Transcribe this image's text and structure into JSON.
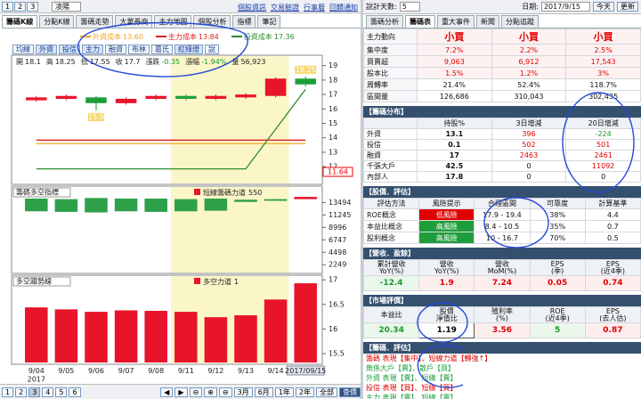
{
  "left": {
    "nav": [
      "1",
      "2",
      "3"
    ],
    "stock_name": "凌陽",
    "links": [
      "個股資訊",
      "交易驗證",
      "行事曆",
      "回饋通知"
    ],
    "tabs": [
      "籌碼K線",
      "分點K線",
      "籌碼走勢",
      "大單券商",
      "主力地圖",
      "個股分析",
      "指標",
      "筆記"
    ],
    "buttons": [
      "均線",
      "外資",
      "投信",
      "主力",
      "融資",
      "布林",
      "葛氏",
      "紅綠燈",
      "說"
    ],
    "info_labels": [
      "開",
      "高",
      "低",
      "收",
      "漲跌",
      "漲幅",
      "量"
    ],
    "change": -0.35,
    "change_pct": {
      "value": -1.94,
      "label": "-1.94%"
    },
    "volume": {
      "value": 56923,
      "label": "56,923"
    },
    "pages": [
      "1",
      "2",
      "3",
      "4",
      "5",
      "6"
    ],
    "ranges": [
      "3月",
      "6月",
      "1年",
      "2年",
      "全部",
      "查價"
    ]
  },
  "chart_data": [
    {
      "type": "candlestick",
      "categories": [
        "9/04",
        "9/05",
        "9/06",
        "9/07",
        "9/08",
        "9/11",
        "9/12",
        "9/13",
        "9/14",
        "2017/09/15"
      ],
      "year_label": "2017",
      "open": [
        16.6,
        16.7,
        16.8,
        16.4,
        16.7,
        16.9,
        16.7,
        16.8,
        16.9,
        18.1
      ],
      "high": [
        16.9,
        17.0,
        16.9,
        16.8,
        17.0,
        17.0,
        17.0,
        17.1,
        18.2,
        18.25
      ],
      "low": [
        16.5,
        16.6,
        15.9,
        16.3,
        16.6,
        16.6,
        16.6,
        16.7,
        16.8,
        17.55
      ],
      "close": [
        16.8,
        16.9,
        16.4,
        16.7,
        16.9,
        16.7,
        16.9,
        17.0,
        18.1,
        17.7
      ],
      "up_color": "#e8142a",
      "down_color": "#1e9e3a",
      "series": [
        {
          "name": "外資成本",
          "label": "13.60",
          "color": "#f5a623",
          "values": [
            13.6,
            13.6,
            13.6,
            13.6,
            13.6,
            13.6,
            13.6,
            13.6,
            13.6,
            13.6
          ]
        },
        {
          "name": "主力成本",
          "label": "13.84",
          "color": "#e02020",
          "values": [
            13.84,
            13.84,
            13.84,
            13.84,
            13.84,
            13.84,
            13.84,
            13.84,
            13.84,
            13.84
          ]
        },
        {
          "name": "投資成本",
          "label": "17.36",
          "color": "#2e8b2e",
          "values": [
            11.85,
            11.85,
            11.85,
            11.85,
            11.85,
            11.85,
            11.85,
            11.85,
            14.6,
            17.36
          ]
        }
      ],
      "ylim": [
        10.9,
        19.35
      ],
      "yticks": [
        19,
        18,
        17,
        16,
        15,
        14,
        13,
        12
      ],
      "marker": 11.64
    },
    {
      "type": "range-bar",
      "title": "籌碼多空指標",
      "indicator": "短線籌碼力道",
      "indicator_value": 550,
      "color": "#e8142a",
      "ylim": [
        1000,
        15000
      ],
      "yticks": [
        13494,
        11245,
        8996,
        6747,
        4498,
        2249
      ],
      "values": [
        [
          11900,
          14200
        ],
        [
          11800,
          14100
        ],
        [
          11700,
          14300
        ],
        [
          11900,
          14200
        ],
        [
          11800,
          14200
        ],
        [
          11900,
          14100
        ],
        [
          12000,
          14200
        ],
        [
          13600,
          14000
        ],
        [
          13800,
          14100
        ],
        [
          14100,
          14500
        ]
      ],
      "colors": [
        "#2ea04a",
        "#2ea04a",
        "#2ea04a",
        "#2ea04a",
        "#2ea04a",
        "#2ea04a",
        "#2ea04a",
        "#2ea04a",
        "#2ea04a",
        "#e8142a"
      ]
    },
    {
      "type": "bar",
      "title": "多空趨勢線",
      "indicator": "多空力道",
      "indicator_value": 1,
      "color": "#e8142a",
      "ylim": [
        15.32,
        17.04
      ],
      "yticks": [
        17,
        16.5,
        16,
        15.5
      ],
      "values": [
        16.44,
        16.4,
        16.35,
        16.38,
        16.37,
        16.35,
        16.24,
        16.28,
        16.6,
        16.93
      ]
    }
  ],
  "right": {
    "days_label": "說計天數:",
    "days": "5",
    "date_label": "日期:",
    "date": "2017/9/15",
    "today": "今天",
    "update": "更新",
    "tabs": [
      "籌碼分析",
      "籌碼表",
      "重大事件",
      "新聞",
      "分點追蹤"
    ],
    "summary": [
      [
        "主力動向",
        "小買",
        "小買",
        "小買"
      ],
      [
        "集中度",
        "7.2%",
        "2.2%",
        "2.5%"
      ],
      [
        "買賣超",
        "9,063",
        "6,912",
        "17,543"
      ],
      [
        "股本比",
        "1.5%",
        "1.2%",
        "3%"
      ],
      [
        "周轉率",
        "21.4%",
        "52.4%",
        "118.7%"
      ],
      [
        "區間量",
        "126,686",
        "310,043",
        "302,435"
      ]
    ],
    "distribution": {
      "title": "【籌碼分布】",
      "columns": [
        "持股%",
        "3日增減",
        "20日增減"
      ],
      "rows": [
        [
          "外資",
          "13.1",
          "396",
          "-224"
        ],
        [
          "投信",
          "0.1",
          "502",
          "501"
        ],
        [
          "融資",
          "17",
          "2463",
          "2461"
        ],
        [
          "千張大戶",
          "42.5",
          "0",
          "11092"
        ],
        [
          "內部人",
          "17.8",
          "0",
          "0"
        ]
      ]
    },
    "valuation": {
      "title": "【股價．評估】",
      "columns": [
        "評估方法",
        "風險提示",
        "合理區間",
        "可靠度",
        "計算基準"
      ],
      "rows": [
        [
          "ROE概念",
          "低風險",
          "17.9 - 19.4",
          "38%",
          "4.4"
        ],
        [
          "本益比概念",
          "高風險",
          "8.4 - 10.5",
          "35%",
          "0.7"
        ],
        [
          "股利概念",
          "高風險",
          "10 - 16.7",
          "70%",
          "0.5"
        ]
      ],
      "risk_colors": [
        "#e00000",
        "#1e9e3a",
        "#1e9e3a"
      ]
    },
    "revenue": {
      "title": "【營收．盈餘】",
      "columns": [
        "累計營收\nYoY(%)",
        "營收\nYoY(%)",
        "營收\nMoM(%)",
        "EPS\n(季)",
        "EPS\n(近4季)"
      ],
      "values": [
        "-12.4",
        "1.9",
        "7.24",
        "0.05",
        "0.74"
      ]
    },
    "market": {
      "title": "【市場評價】",
      "columns": [
        "本益比",
        "股價\n淨值比",
        "殖利率\n(%)",
        "ROE\n(近4季)",
        "EPS\n(去人估)"
      ],
      "values": [
        "20.34",
        "1.19",
        "3.56",
        "5",
        "0.87"
      ]
    },
    "assessment": {
      "title": "【籌碼．評估】",
      "lines": [
        "籌碼 表現【集中】、短線力道【轉強↑】",
        "無係大戶【賣】、散戶【買】",
        "外資 表現【賣】、短線【賣】",
        "投信 表現【買】、短線【買】",
        "主力 表現【賣】、短線【賣】"
      ],
      "colors": [
        "#e00000",
        "#1e9e3a",
        "#1e9e3a",
        "#e00000",
        "#1e9e3a"
      ]
    }
  }
}
